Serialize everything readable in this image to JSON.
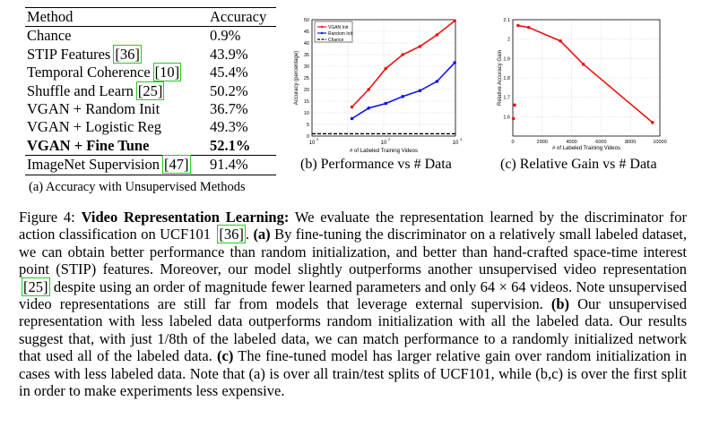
{
  "table_a": {
    "header": {
      "method": "Method",
      "accuracy": "Accuracy"
    },
    "rows": [
      {
        "method": "Chance",
        "cite": "",
        "accuracy": "0.9%"
      },
      {
        "method": "STIP Features",
        "cite": "[36]",
        "accuracy": "43.9%"
      },
      {
        "method": "Temporal Coherence",
        "cite": "[10]",
        "accuracy": "45.4%"
      },
      {
        "method": "Shuffle and Learn",
        "cite": "[25]",
        "accuracy": "50.2%"
      },
      {
        "method": "VGAN + Random Init",
        "cite": "",
        "accuracy": "36.7%"
      },
      {
        "method": "VGAN + Logistic Reg",
        "cite": "",
        "accuracy": "49.3%"
      },
      {
        "method": "VGAN + Fine Tune",
        "cite": "",
        "accuracy": "52.1%"
      },
      {
        "method": "ImageNet Supervision",
        "cite": "[47]",
        "accuracy": "91.4%"
      }
    ],
    "caption": "(a) Accuracy with Unsupervised Methods"
  },
  "chart_data": [
    {
      "type": "line",
      "caption": "(b) Performance vs # Data",
      "xlabel": "# of Labeled Training Videos",
      "ylabel": "Accuracy (percentage)",
      "xscale": "log",
      "xlim": [
        1,
        10000
      ],
      "ylim": [
        0,
        50
      ],
      "xticks": [
        "10",
        "10",
        "10"
      ],
      "xtick_exponents": [
        "0",
        "2",
        "4"
      ],
      "yticks": [
        "0",
        "5",
        "10",
        "15",
        "20",
        "25",
        "30",
        "35",
        "40",
        "45",
        "50"
      ],
      "legend_position": "top-left",
      "grid": true,
      "series": [
        {
          "name": "VGAN Init",
          "color": "#ee1111",
          "x": [
            13,
            38,
            114,
            340,
            1020,
            3060,
            9537
          ],
          "y": [
            12.5,
            20.0,
            29.0,
            35.0,
            38.5,
            43.5,
            49.5
          ]
        },
        {
          "name": "Random Init",
          "color": "#1111ee",
          "x": [
            13,
            38,
            114,
            340,
            1020,
            3060,
            9537
          ],
          "y": [
            7.5,
            12.0,
            14.0,
            17.0,
            19.5,
            23.5,
            31.5
          ]
        },
        {
          "name": "Chance",
          "color": "#000000",
          "dashed": true,
          "x": [
            1,
            10000
          ],
          "y": [
            1,
            1
          ]
        }
      ]
    },
    {
      "type": "scatter",
      "caption": "(c) Relative Gain vs # Data",
      "xlabel": "# of Labeled Training Videos",
      "ylabel": "Relative Accuracy Gain",
      "xlim": [
        0,
        10000
      ],
      "ylim": [
        1.5,
        2.1
      ],
      "xticks": [
        "0",
        "2000",
        "4000",
        "6000",
        "8000",
        "10000"
      ],
      "yticks": [
        "1.6",
        "1.7",
        "1.8",
        "1.9",
        "2",
        "2.1"
      ],
      "grid": true,
      "series": [
        {
          "name": "",
          "color": "#ee1111",
          "x": [
            40,
            120,
            360,
            1080,
            3240,
            4800,
            9500
          ],
          "y": [
            1.59,
            1.66,
            2.07,
            2.06,
            1.99,
            1.87,
            1.57
          ]
        }
      ]
    }
  ],
  "caption": {
    "figure": "Figure 4: ",
    "title": "Video Representation Learning:",
    "t1": " We evaluate the representation learned by the discriminator for action classification on UCF101 ",
    "cite1": "[36]",
    "t2": ". ",
    "a": "(a)",
    "t3": " By fine-tuning the discriminator on a relatively small labeled dataset, we can obtain better performance than random initialization, and better than hand-crafted space-time interest point (STIP) features. Moreover, our model slightly outperforms another unsupervised video representation ",
    "cite2": "[25]",
    "t4": " despite using an order of magnitude fewer learned parameters and only 64 × 64 videos. Note unsupervised video representations are still far from models that leverage external supervision. ",
    "b": "(b)",
    "t5": " Our unsupervised representation with less labeled data outperforms random initialization with all the labeled data. Our results suggest that, with just 1/8th of the labeled data, we can match performance to a randomly initialized network that used all of the labeled data. ",
    "c": "(c)",
    "t6": " The fine-tuned model has larger relative gain over random initialization in cases with less labeled data. Note that (a) is over all train/test splits of UCF101, while (b,c) is over the first split in order to make experiments less expensive."
  }
}
